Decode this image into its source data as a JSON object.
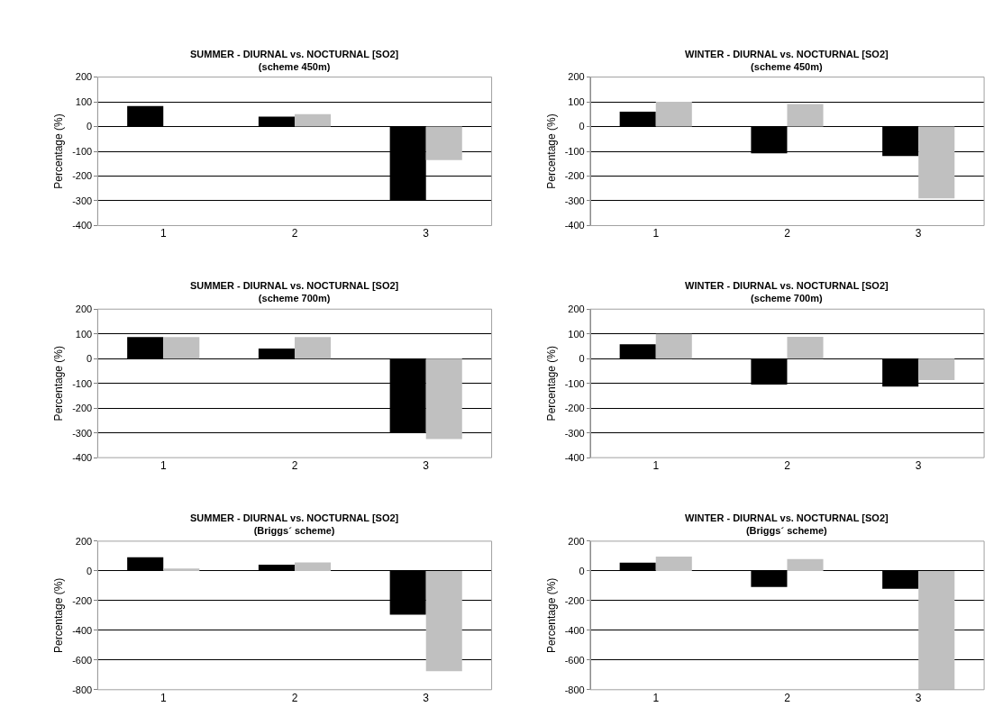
{
  "chart_data": [
    {
      "type": "bar",
      "title": "SUMMER - DIURNAL vs. NOCTURNAL [SO2]",
      "subtitle": "(scheme 450m)",
      "ylabel": "Percentage (%)",
      "categories": [
        "1",
        "2",
        "3"
      ],
      "ylim": [
        -400,
        200
      ],
      "yticks": [
        -400,
        -300,
        -200,
        -100,
        0,
        100,
        200
      ],
      "grid": "y",
      "series": [
        {
          "color": "#000000",
          "values": [
            83,
            40,
            -300
          ]
        },
        {
          "color": "#c0c0c0",
          "values": [
            0,
            50,
            -135
          ]
        }
      ]
    },
    {
      "type": "bar",
      "title": "WINTER - DIURNAL vs. NOCTURNAL [SO2]",
      "subtitle": "(scheme 450m)",
      "ylabel": "Percentage (%)",
      "categories": [
        "1",
        "2",
        "3"
      ],
      "ylim": [
        -400,
        200
      ],
      "yticks": [
        -400,
        -300,
        -200,
        -100,
        0,
        100,
        200
      ],
      "grid": "y",
      "series": [
        {
          "color": "#000000",
          "values": [
            60,
            -108,
            -119
          ]
        },
        {
          "color": "#c0c0c0",
          "values": [
            100,
            91,
            -290
          ]
        }
      ]
    },
    {
      "type": "bar",
      "title": "SUMMER - DIURNAL vs. NOCTURNAL [SO2]",
      "subtitle": "(scheme 700m)",
      "ylabel": "Percentage (%)",
      "categories": [
        "1",
        "2",
        "3"
      ],
      "ylim": [
        -400,
        200
      ],
      "yticks": [
        -400,
        -300,
        -200,
        -100,
        0,
        100,
        200
      ],
      "grid": "y",
      "series": [
        {
          "color": "#000000",
          "values": [
            87,
            41,
            -300
          ]
        },
        {
          "color": "#c0c0c0",
          "values": [
            87,
            87,
            -325
          ]
        }
      ]
    },
    {
      "type": "bar",
      "title": "WINTER - DIURNAL vs. NOCTURNAL [SO2]",
      "subtitle": "(scheme 700m)",
      "ylabel": "Percentage (%)",
      "categories": [
        "1",
        "2",
        "3"
      ],
      "ylim": [
        -400,
        200
      ],
      "yticks": [
        -400,
        -300,
        -200,
        -100,
        0,
        100,
        200
      ],
      "grid": "y",
      "series": [
        {
          "color": "#000000",
          "values": [
            58,
            -105,
            -113
          ]
        },
        {
          "color": "#c0c0c0",
          "values": [
            100,
            88,
            -87
          ]
        }
      ]
    },
    {
      "type": "bar",
      "title": "SUMMER - DIURNAL vs. NOCTURNAL [SO2]",
      "subtitle": "(Briggs´ scheme)",
      "ylabel": "Percentage (%)",
      "categories": [
        "1",
        "2",
        "3"
      ],
      "ylim": [
        -800,
        200
      ],
      "yticks": [
        -800,
        -600,
        -400,
        -200,
        0,
        200
      ],
      "grid": "y",
      "series": [
        {
          "color": "#000000",
          "values": [
            91,
            42,
            -295
          ]
        },
        {
          "color": "#c0c0c0",
          "values": [
            16,
            57,
            -675
          ]
        }
      ]
    },
    {
      "type": "bar",
      "title": "WINTER - DIURNAL vs. NOCTURNAL [SO2]",
      "subtitle": "(Briggs´ scheme)",
      "ylabel": "Percentage (%)",
      "categories": [
        "1",
        "2",
        "3"
      ],
      "ylim": [
        -800,
        200
      ],
      "yticks": [
        -800,
        -600,
        -400,
        -200,
        0,
        200
      ],
      "grid": "y",
      "series": [
        {
          "color": "#000000",
          "values": [
            56,
            -109,
            -120
          ]
        },
        {
          "color": "#c0c0c0",
          "values": [
            97,
            80,
            -800
          ]
        }
      ]
    }
  ]
}
